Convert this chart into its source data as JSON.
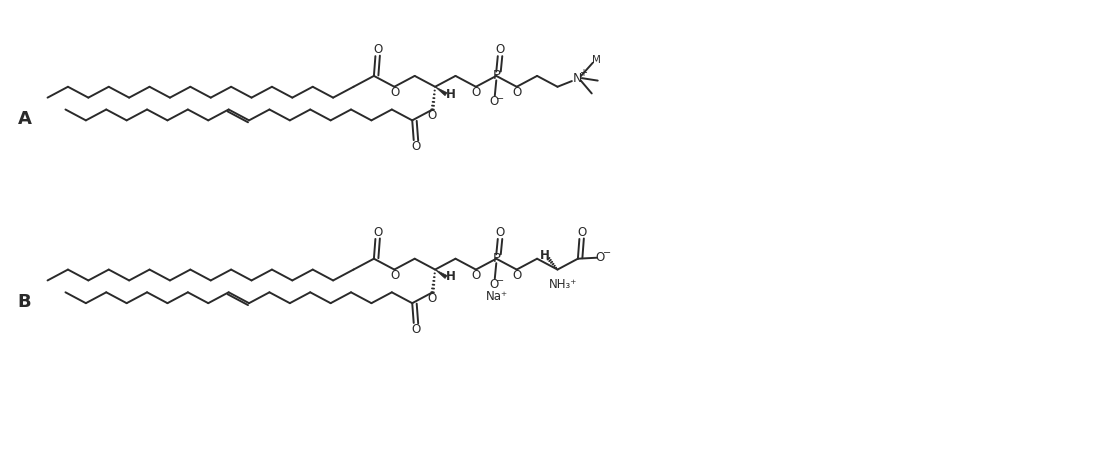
{
  "bg_color": "#ffffff",
  "line_color": "#2a2a2a",
  "lw": 1.4,
  "figsize": [
    11.11,
    4.68
  ],
  "dpi": 100,
  "xlim": [
    0,
    111.1
  ],
  "ylim": [
    0,
    46.8
  ]
}
